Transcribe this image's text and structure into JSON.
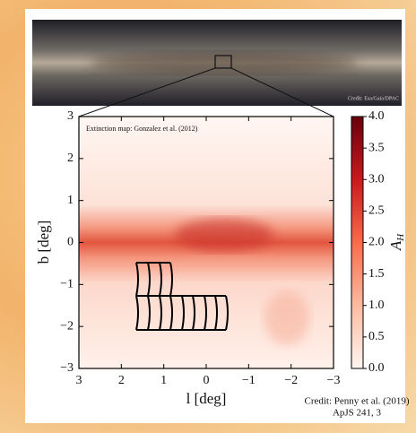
{
  "chart_data": {
    "type": "heatmap",
    "inset_credit": "Credit: Esa/Gaia/DPAC",
    "annotation": "Extinction map: Gonzalez et al. (2012)",
    "credit": [
      "Credit: Penny et al. (2019)",
      "ApJS 241, 3"
    ],
    "xlabel": "l [deg]",
    "ylabel": "b [deg]",
    "xlim": [
      3,
      -3
    ],
    "xticks": [
      3,
      2,
      1,
      0,
      {
        "value": -1,
        "label": "−1"
      },
      {
        "value": -2,
        "label": "−2"
      },
      {
        "value": -3,
        "label": "−3"
      }
    ],
    "ylim": [
      -3,
      3
    ],
    "yticks": [
      {
        "value": -3,
        "label": "−3"
      },
      {
        "value": -2,
        "label": "−2"
      },
      {
        "value": -1,
        "label": "−1"
      },
      0,
      1,
      2,
      3
    ],
    "colorbar": {
      "label": "A",
      "label_sub": "H",
      "lim": [
        0,
        4
      ],
      "ticks": [
        {
          "value": 0,
          "label": "0.0"
        },
        {
          "value": 0.5,
          "label": "0.5"
        },
        {
          "value": 1,
          "label": "1.0"
        },
        {
          "value": 1.5,
          "label": "1.5"
        },
        {
          "value": 2,
          "label": "2.0"
        },
        {
          "value": 2.5,
          "label": "2.5"
        },
        {
          "value": 3,
          "label": "3.0"
        },
        {
          "value": 3.5,
          "label": "3.5"
        },
        {
          "value": 4,
          "label": "4.0"
        }
      ],
      "colors": [
        "#fff5f0",
        "#fcbba1",
        "#fb6a4a",
        "#cb181d",
        "#67000d"
      ]
    }
  }
}
